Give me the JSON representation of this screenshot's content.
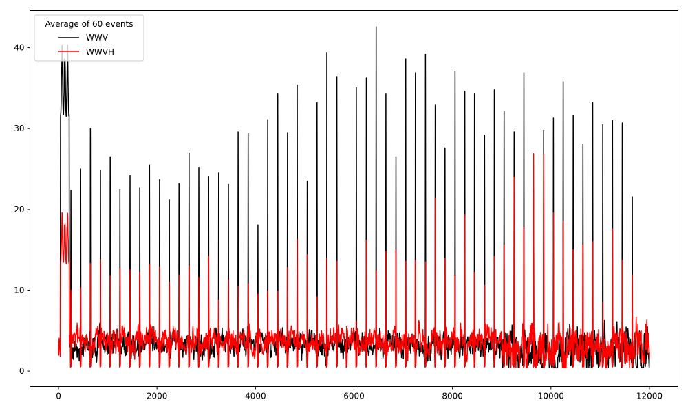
{
  "chart_data": {
    "type": "line",
    "title": "",
    "xlabel": "",
    "ylabel": "",
    "xlim": [
      -580,
      12580
    ],
    "ylim": [
      -1.9,
      44.6
    ],
    "xticks": [
      0,
      2000,
      4000,
      6000,
      8000,
      10000,
      12000
    ],
    "xtick_labels": [
      "0",
      "2000",
      "4000",
      "6000",
      "8000",
      "10000",
      "12000"
    ],
    "yticks": [
      0,
      10,
      20,
      30,
      40
    ],
    "ytick_labels": [
      "0",
      "10",
      "20",
      "30",
      "40"
    ],
    "grid": false,
    "legend": {
      "title": "Average of 60 events",
      "placement": "top-left"
    },
    "x_range": [
      0,
      12000
    ],
    "spike_x_start": 250,
    "spike_spacing": 200,
    "series": [
      {
        "name": "WWV",
        "color": "#000000",
        "initial_segment": {
          "x": [
            40,
            220
          ],
          "y_range": [
            31.5,
            40.5
          ]
        },
        "baseline": {
          "before_9000": 3.2,
          "after_9000": 2.5
        },
        "spike_peaks": [
          22.4,
          25.0,
          30.0,
          24.8,
          26.5,
          22.5,
          24.2,
          22.7,
          25.5,
          23.7,
          21.2,
          23.2,
          27.0,
          25.2,
          24.1,
          24.5,
          23.1,
          29.6,
          29.4,
          18.1,
          31.1,
          34.3,
          29.5,
          35.4,
          23.5,
          33.2,
          39.4,
          36.4,
          5.5,
          35.1,
          36.3,
          42.6,
          34.3,
          26.5,
          38.6,
          36.9,
          39.2,
          32.9,
          27.6,
          37.1,
          34.6,
          34.3,
          29.2,
          34.8,
          32.1,
          29.6,
          36.9,
          22.5,
          29.8,
          31.3,
          35.8,
          31.6,
          28.1,
          33.2,
          30.5,
          31.0,
          30.7,
          21.6
        ]
      },
      {
        "name": "WWVH",
        "color": "#ff0000",
        "initial_segment": {
          "x": [
            40,
            220
          ],
          "y_range": [
            13.3,
            19.8
          ]
        },
        "baseline": {
          "before_9000": 3.8,
          "after_9000": 2.8
        },
        "spike_peaks": [
          10.0,
          10.3,
          13.3,
          13.8,
          11.8,
          12.7,
          12.5,
          12.2,
          13.2,
          12.9,
          11.0,
          11.9,
          13.0,
          11.6,
          14.2,
          8.8,
          11.3,
          10.5,
          10.8,
          9.5,
          9.9,
          9.9,
          12.8,
          16.3,
          14.4,
          9.2,
          13.9,
          13.6,
          5.5,
          6.2,
          16.2,
          12.4,
          14.8,
          15.0,
          13.6,
          13.7,
          13.5,
          21.4,
          13.9,
          11.8,
          19.3,
          12.2,
          10.6,
          14.2,
          15.6,
          24.0,
          17.8,
          26.9,
          26.8,
          19.6,
          18.5,
          15.0,
          15.6,
          16.0,
          8.5,
          17.6,
          13.7,
          11.9
        ]
      }
    ]
  }
}
